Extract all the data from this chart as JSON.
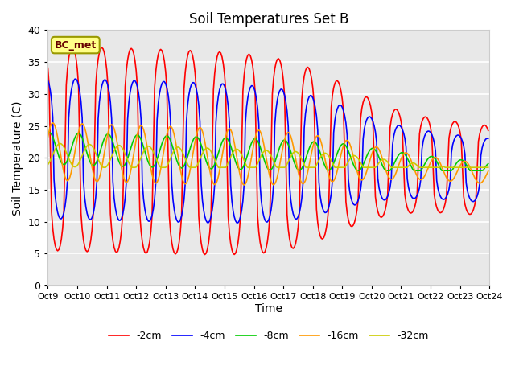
{
  "title": "Soil Temperatures Set B",
  "xlabel": "Time",
  "ylabel": "Soil Temperature (C)",
  "ylim": [
    0,
    40
  ],
  "bg_color": "#e8e8e8",
  "fig_color": "#ffffff",
  "annotation": "BC_met",
  "tick_labels": [
    "Oct 9",
    "Oct 10",
    "Oct 11",
    "Oct 12",
    "Oct 13",
    "Oct 14",
    "Oct 15",
    "Oct 16",
    "Oct 17",
    "Oct 18",
    "Oct 19",
    "Oct 20",
    "Oct 21",
    "Oct 22",
    "Oct 23",
    "Oct 24"
  ],
  "series": [
    {
      "label": "-2cm",
      "color": "#ff0000",
      "lw": 1.2
    },
    {
      "label": "-4cm",
      "color": "#0000ff",
      "lw": 1.2
    },
    {
      "label": "-8cm",
      "color": "#00cc00",
      "lw": 1.2
    },
    {
      "label": "-16cm",
      "color": "#ff9900",
      "lw": 1.2
    },
    {
      "label": "-32cm",
      "color": "#cccc00",
      "lw": 1.2
    }
  ],
  "yticks": [
    0,
    5,
    10,
    15,
    20,
    25,
    30,
    35,
    40
  ]
}
